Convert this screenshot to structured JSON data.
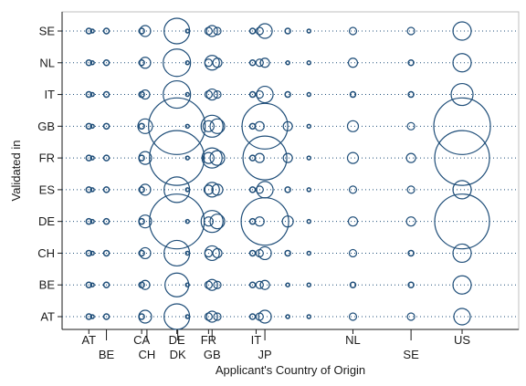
{
  "chart_data": {
    "type": "scatter",
    "title": "",
    "xlabel": "Applicant's Country of Origin",
    "ylabel": "Validated in",
    "x_tick_labels": [
      {
        "label": "AT",
        "x": 1,
        "row": 0
      },
      {
        "label": "BE",
        "x": 2,
        "row": 1
      },
      {
        "label": "CA",
        "x": 4,
        "row": 0
      },
      {
        "label": "CH",
        "x": 4.3,
        "row": 1
      },
      {
        "label": "DE",
        "x": 6,
        "row": 0
      },
      {
        "label": "DK",
        "x": 6.05,
        "row": 1
      },
      {
        "label": "FR",
        "x": 7.8,
        "row": 0
      },
      {
        "label": "GB",
        "x": 8,
        "row": 1
      },
      {
        "label": "IT",
        "x": 10.5,
        "row": 0
      },
      {
        "label": "JP",
        "x": 11,
        "row": 1
      },
      {
        "label": "NL",
        "x": 16,
        "row": 0
      },
      {
        "label": "SE",
        "x": 19.3,
        "row": 1
      },
      {
        "label": "US",
        "x": 22.2,
        "row": 0
      }
    ],
    "y_categories": [
      "AT",
      "BE",
      "CH",
      "DE",
      "ES",
      "FR",
      "GB",
      "IT",
      "NL",
      "SE"
    ],
    "xlim": [
      0,
      25
    ],
    "grid": "dotted horizontal lines at each category",
    "marker": "hollow circle, radius proportional to count",
    "columns": [
      {
        "x": 1,
        "sizes": [
          3,
          3,
          3,
          3,
          3,
          3,
          3,
          3,
          3,
          3
        ]
      },
      {
        "x": 1.2,
        "sizes": [
          2,
          2,
          2,
          2,
          2,
          2,
          2,
          2,
          2,
          2
        ]
      },
      {
        "x": 2,
        "sizes": [
          3,
          3,
          3,
          3,
          3,
          3,
          3,
          3,
          3,
          3
        ]
      },
      {
        "x": 4,
        "sizes": [
          3,
          3,
          3,
          3,
          3,
          3,
          3,
          3,
          3,
          3
        ]
      },
      {
        "x": 4.2,
        "sizes": [
          7,
          5,
          6,
          7,
          6,
          7,
          8,
          5,
          6,
          6
        ]
      },
      {
        "x": 6,
        "sizes": [
          14,
          13,
          14,
          30,
          14,
          30,
          31,
          15,
          15,
          14
        ]
      },
      {
        "x": 6.6,
        "sizes": [
          2,
          2,
          2,
          2,
          2,
          2,
          2,
          2,
          2,
          2
        ]
      },
      {
        "x": 7.8,
        "sizes": [
          4,
          4,
          4,
          5,
          5,
          6,
          6,
          4,
          4,
          4
        ]
      },
      {
        "x": 8,
        "sizes": [
          6,
          6,
          8,
          12,
          8,
          11,
          12,
          6,
          8,
          6
        ]
      },
      {
        "x": 8.3,
        "sizes": [
          4,
          4,
          5,
          8,
          6,
          8,
          8,
          4,
          5,
          4
        ]
      },
      {
        "x": 10.3,
        "sizes": [
          3,
          3,
          3,
          3,
          3,
          3,
          3,
          3,
          3,
          3
        ]
      },
      {
        "x": 10.7,
        "sizes": [
          4,
          4,
          4,
          5,
          4,
          5,
          5,
          4,
          4,
          4
        ]
      },
      {
        "x": 11,
        "sizes": [
          7,
          5,
          7,
          26,
          9,
          24,
          25,
          9,
          5,
          8
        ]
      },
      {
        "x": 12.3,
        "sizes": [
          2,
          2,
          3,
          6,
          3,
          5,
          5,
          3,
          2,
          3
        ]
      },
      {
        "x": 13.5,
        "sizes": [
          2,
          2,
          2,
          2,
          2,
          2,
          2,
          2,
          2,
          2
        ]
      },
      {
        "x": 16,
        "sizes": [
          4,
          3,
          4,
          5,
          4,
          6,
          6,
          3,
          5,
          4
        ]
      },
      {
        "x": 19.3,
        "sizes": [
          4,
          3,
          3,
          5,
          4,
          5,
          4,
          3,
          3,
          4
        ]
      },
      {
        "x": 22.2,
        "sizes": [
          9,
          10,
          10,
          30,
          10,
          30,
          31,
          12,
          10,
          10
        ]
      }
    ]
  }
}
